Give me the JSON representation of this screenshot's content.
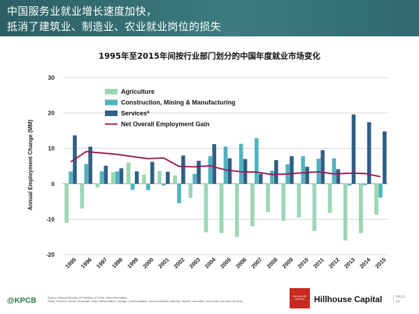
{
  "header": {
    "line1": "中国服务业就业增长速度加快，",
    "line2": "抵消了建筑业、制造业、农业就业岗位的损失"
  },
  "footer": {
    "source_line1": "Source: National Bureau of Statistics of China, Wind information.",
    "source_line2": "*Note: Services include wholesale, retail, transportation, storage, communication, accommodation, catering, finance, education, real estate and other services.",
    "kpcb": "@KPCB",
    "hillhouse_logo_text": "HILLHOUSE CAPITAL",
    "hillhouse_name": "Hillhouse Capital",
    "page_label": "PAGE",
    "page_number": "83"
  },
  "colors": {
    "agriculture": "#9bd6b3",
    "construction": "#4fb3bf",
    "services": "#2f5f86",
    "net": "#9c1a4c",
    "header": "#3a7a7e"
  },
  "chart_data": {
    "type": "bar",
    "title": "1995年至2015年间按行业部门划分的中国年度就业市场变化",
    "ylabel": "Annual Employment Change (MM)",
    "ylim": [
      -20,
      30
    ],
    "yticks": [
      "-20",
      "-10",
      "0",
      "10",
      "20",
      "30"
    ],
    "grid": true,
    "legend_position": "top-left",
    "categories": [
      "1995",
      "1996",
      "1997",
      "1998",
      "1999",
      "2000",
      "2001",
      "2002",
      "2003",
      "2004",
      "2005",
      "2006",
      "2007",
      "2008",
      "2009",
      "2010",
      "2011",
      "2012",
      "2013",
      "2014",
      "2015"
    ],
    "series": [
      {
        "name": "Agriculture",
        "kind": "bar",
        "values": [
          -11,
          -7,
          -1,
          3.3,
          6,
          2.6,
          3.6,
          2.4,
          -4,
          -13.7,
          -13.9,
          -15,
          -12,
          -8,
          -10.5,
          -9.5,
          -13.3,
          -8.2,
          -16,
          -13.9,
          -8.7
        ]
      },
      {
        "name": "Construction, Mining & Manufacturing",
        "kind": "bar",
        "values": [
          3.5,
          5.6,
          3.5,
          3.5,
          -1.7,
          -1.8,
          -0.5,
          -5.5,
          2.8,
          7.8,
          10.5,
          11.3,
          12.9,
          3.7,
          5.5,
          7.8,
          7.1,
          7.2,
          -0.5,
          -0.4,
          -3.9
        ]
      },
      {
        "name": "Services*",
        "kind": "bar",
        "values": [
          13.7,
          10.5,
          5.1,
          4.4,
          3.5,
          6.2,
          3.4,
          8,
          6.5,
          11.2,
          7.2,
          7,
          2.8,
          6.7,
          7.8,
          4.8,
          9.5,
          4.1,
          19.6,
          17.4,
          14.8
        ]
      },
      {
        "name": "Net Overall Employment Gain",
        "kind": "line",
        "values": [
          6.2,
          9.1,
          8.7,
          8.3,
          7.7,
          7.1,
          7.3,
          4.9,
          4.8,
          5.1,
          3.9,
          3.4,
          3.3,
          2.6,
          2.8,
          3.1,
          3.4,
          2.8,
          3.0,
          2.9,
          2.0
        ]
      }
    ]
  }
}
